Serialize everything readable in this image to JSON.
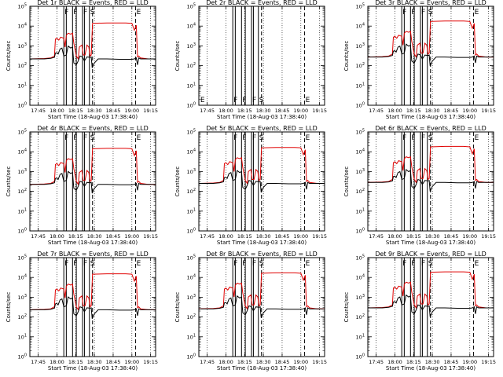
{
  "chart_data": {
    "type": "line",
    "panels": [
      {
        "title": "Det 1r BLACK = Events, RED = LLD",
        "has_data": true
      },
      {
        "title": "Det 2r BLACK = Events, RED = LLD",
        "has_data": false
      },
      {
        "title": "Det 3r BLACK = Events, RED = LLD",
        "has_data": true
      },
      {
        "title": "Det 4r BLACK = Events, RED = LLD",
        "has_data": true
      },
      {
        "title": "Det 5r BLACK = Events, RED = LLD",
        "has_data": true
      },
      {
        "title": "Det 6r BLACK = Events, RED = LLD",
        "has_data": true
      },
      {
        "title": "Det 7r BLACK = Events, RED = LLD",
        "has_data": true
      },
      {
        "title": "Det 8r BLACK = Events, RED = LLD",
        "has_data": true
      },
      {
        "title": "Det 9r BLACK = Events, RED = LLD",
        "has_data": true
      }
    ],
    "ylabel": "Counts/sec",
    "xlabel": "Start Time (18-Aug-03 17:38:40)",
    "x_ticks": [
      "17:45",
      "18:00",
      "18:15",
      "18:30",
      "18:45",
      "19:00",
      "19:15"
    ],
    "x_tick_minutes": [
      0,
      15,
      30,
      45,
      60,
      75,
      90
    ],
    "x_range_minutes": [
      -6.67,
      94
    ],
    "y_scale": "log",
    "y_ticks": [
      {
        "exp": 0,
        "label": "10",
        "sup": "0"
      },
      {
        "exp": 1,
        "label": "10",
        "sup": "1"
      },
      {
        "exp": 2,
        "label": "10",
        "sup": "2"
      },
      {
        "exp": 3,
        "label": "10",
        "sup": "3"
      },
      {
        "exp": 4,
        "label": "10",
        "sup": "4"
      },
      {
        "exp": 5,
        "label": "10",
        "sup": "5"
      }
    ],
    "ylim_exp": [
      0,
      5
    ],
    "grid": "dotted vertical at hour ticks",
    "vertical_lines": [
      {
        "t": 20.5,
        "style": "solid",
        "label": "F"
      },
      {
        "t": 22.5,
        "style": "solid",
        "label": ""
      },
      {
        "t": 27.5,
        "style": "solid",
        "label": "F"
      },
      {
        "t": 30.5,
        "style": "solid",
        "label": ""
      },
      {
        "t": 35.5,
        "style": "solid",
        "label": "F"
      },
      {
        "t": 37.0,
        "style": "solid",
        "label": ""
      },
      {
        "t": 41.0,
        "style": "solid",
        "label": "S"
      },
      {
        "t": 43.5,
        "style": "dashed",
        "label": ""
      },
      {
        "t": 78.0,
        "style": "dashed",
        "label": "E"
      }
    ],
    "edge_marker": {
      "t": -5.5,
      "label": "E"
    },
    "series": [
      {
        "name": "Events",
        "color": "#000000",
        "points": [
          [
            -6.7,
            2.4
          ],
          [
            5.0,
            2.4
          ],
          [
            10.0,
            2.43
          ],
          [
            13.0,
            2.48
          ],
          [
            13.8,
            2.7
          ],
          [
            15.0,
            2.72
          ],
          [
            16.0,
            2.65
          ],
          [
            17.5,
            2.9
          ],
          [
            19.0,
            2.95
          ],
          [
            20.5,
            2.55
          ],
          [
            22.5,
            2.6
          ],
          [
            24.0,
            3.05
          ],
          [
            26.0,
            2.95
          ],
          [
            27.5,
            3.0
          ],
          [
            28.5,
            2.2
          ],
          [
            30.5,
            2.1
          ],
          [
            32.0,
            2.3
          ],
          [
            33.5,
            2.55
          ],
          [
            35.5,
            2.5
          ],
          [
            37.0,
            2.3
          ],
          [
            39.0,
            2.5
          ],
          [
            41.5,
            2.48
          ],
          [
            42.5,
            2.5
          ],
          [
            43.2,
            1.95
          ],
          [
            45.0,
            2.2
          ],
          [
            48.0,
            2.4
          ],
          [
            55.0,
            2.4
          ],
          [
            65.0,
            2.38
          ],
          [
            75.0,
            2.38
          ],
          [
            77.0,
            2.4
          ],
          [
            78.5,
            2.45
          ],
          [
            79.5,
            2.1
          ],
          [
            80.5,
            2.45
          ],
          [
            82.0,
            2.4
          ],
          [
            87.0,
            2.4
          ],
          [
            94.0,
            2.4
          ]
        ]
      },
      {
        "name": "LLD",
        "color": "#e00000",
        "points": [
          [
            -6.7,
            2.4
          ],
          [
            5.0,
            2.42
          ],
          [
            10.0,
            2.45
          ],
          [
            13.0,
            2.55
          ],
          [
            13.8,
            3.4
          ],
          [
            15.0,
            3.45
          ],
          [
            16.5,
            3.35
          ],
          [
            18.0,
            3.5
          ],
          [
            20.5,
            3.45
          ],
          [
            21.5,
            3.0
          ],
          [
            22.5,
            3.6
          ],
          [
            24.0,
            3.7
          ],
          [
            26.0,
            3.65
          ],
          [
            27.5,
            3.7
          ],
          [
            28.5,
            3.2
          ],
          [
            30.5,
            2.55
          ],
          [
            32.0,
            2.4
          ],
          [
            33.0,
            3.0
          ],
          [
            35.0,
            3.1
          ],
          [
            36.0,
            2.6
          ],
          [
            37.5,
            2.6
          ],
          [
            39.0,
            3.1
          ],
          [
            40.5,
            3.0
          ],
          [
            41.5,
            2.55
          ],
          [
            42.5,
            2.6
          ],
          [
            43.5,
            4.2
          ],
          [
            55.0,
            4.22
          ],
          [
            70.0,
            4.22
          ],
          [
            75.0,
            4.2
          ],
          [
            77.0,
            3.85
          ],
          [
            78.5,
            4.1
          ],
          [
            79.5,
            2.5
          ],
          [
            80.5,
            2.55
          ],
          [
            82.0,
            2.45
          ],
          [
            88.0,
            2.4
          ],
          [
            94.0,
            2.4
          ]
        ]
      }
    ]
  }
}
